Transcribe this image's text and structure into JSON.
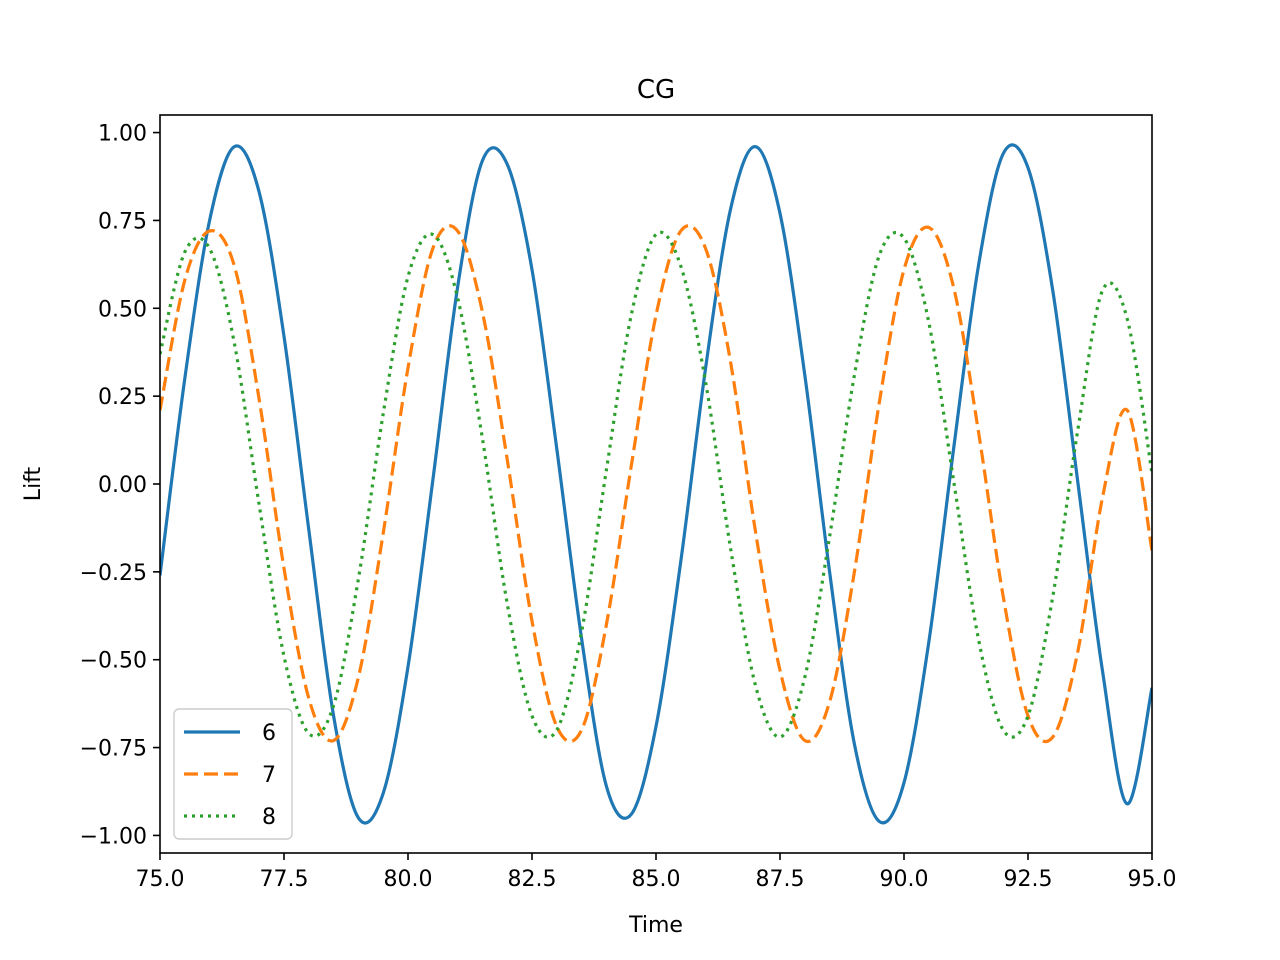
{
  "chart_data": {
    "type": "line",
    "title": "CG",
    "xlabel": "Time",
    "ylabel": "Lift",
    "xlim": [
      75.0,
      95.0
    ],
    "ylim": [
      -1.05,
      1.05
    ],
    "xticks": [
      75.0,
      77.5,
      80.0,
      82.5,
      85.0,
      87.5,
      90.0,
      92.5,
      95.0
    ],
    "xtick_labels": [
      "75.0",
      "77.5",
      "80.0",
      "82.5",
      "85.0",
      "87.5",
      "90.0",
      "92.5",
      "95.0"
    ],
    "yticks": [
      1.0,
      0.75,
      0.5,
      0.25,
      0.0,
      -0.25,
      -0.5,
      -0.75,
      -1.0
    ],
    "ytick_labels": [
      "1.00",
      "0.75",
      "0.50",
      "0.25",
      "0.00",
      "−0.25",
      "−0.50",
      "−0.75",
      "−1.00"
    ],
    "grid": false,
    "legend_position": "lower-left",
    "series": [
      {
        "name": "6",
        "color": "#1f77b4",
        "style": "solid",
        "x": [
          75.0,
          75.5,
          76.0,
          76.5,
          77.0,
          77.5,
          78.0,
          78.5,
          79.0,
          79.5,
          80.0,
          80.5,
          81.0,
          81.5,
          82.0,
          82.5,
          83.0,
          83.5,
          84.0,
          84.5,
          85.0,
          85.5,
          86.0,
          86.5,
          87.0,
          87.5,
          88.0,
          88.5,
          89.0,
          89.5,
          90.0,
          90.5,
          91.0,
          91.5,
          92.0,
          92.5,
          93.0,
          93.5,
          94.0,
          94.5,
          95.0
        ],
        "y": [
          -0.26,
          0.3,
          0.75,
          0.96,
          0.83,
          0.42,
          -0.13,
          -0.66,
          -0.95,
          -0.88,
          -0.52,
          0.01,
          0.56,
          0.92,
          0.91,
          0.61,
          0.1,
          -0.44,
          -0.86,
          -0.94,
          -0.69,
          -0.22,
          0.33,
          0.78,
          0.96,
          0.77,
          0.31,
          -0.25,
          -0.74,
          -0.96,
          -0.85,
          -0.45,
          0.1,
          0.62,
          0.94,
          0.9,
          0.55,
          0.01,
          -0.53,
          -0.91,
          -0.58
        ]
      },
      {
        "name": "7",
        "color": "#ff7f0e",
        "style": "dashed",
        "x": [
          75.0,
          75.5,
          76.0,
          76.5,
          77.0,
          77.5,
          78.0,
          78.5,
          79.0,
          79.5,
          80.0,
          80.5,
          81.0,
          81.5,
          82.0,
          82.5,
          83.0,
          83.5,
          84.0,
          84.5,
          85.0,
          85.5,
          86.0,
          86.5,
          87.0,
          87.5,
          88.0,
          88.5,
          89.0,
          89.5,
          90.0,
          90.5,
          91.0,
          91.5,
          92.0,
          92.5,
          93.0,
          93.5,
          94.0,
          94.5,
          95.0
        ],
        "y": [
          0.21,
          0.58,
          0.72,
          0.62,
          0.24,
          -0.24,
          -0.61,
          -0.73,
          -0.55,
          -0.14,
          0.33,
          0.67,
          0.72,
          0.49,
          0.07,
          -0.39,
          -0.69,
          -0.7,
          -0.4,
          0.05,
          0.48,
          0.72,
          0.67,
          0.35,
          -0.13,
          -0.53,
          -0.73,
          -0.62,
          -0.25,
          0.23,
          0.61,
          0.73,
          0.56,
          0.15,
          -0.32,
          -0.66,
          -0.72,
          -0.48,
          -0.04,
          0.21,
          -0.19
        ]
      },
      {
        "name": "8",
        "color": "#2ca02c",
        "style": "dotted",
        "x": [
          75.0,
          75.5,
          76.0,
          76.5,
          77.0,
          77.5,
          78.0,
          78.5,
          79.0,
          79.5,
          80.0,
          80.5,
          81.0,
          81.5,
          82.0,
          82.5,
          83.0,
          83.5,
          84.0,
          84.5,
          85.0,
          85.5,
          86.0,
          86.5,
          87.0,
          87.5,
          88.0,
          88.5,
          89.0,
          89.5,
          90.0,
          90.5,
          91.0,
          91.5,
          92.0,
          92.5,
          93.0,
          93.5,
          94.0,
          94.5,
          95.0
        ],
        "y": [
          0.37,
          0.66,
          0.67,
          0.4,
          -0.06,
          -0.49,
          -0.71,
          -0.63,
          -0.27,
          0.2,
          0.59,
          0.71,
          0.53,
          0.13,
          -0.34,
          -0.66,
          -0.7,
          -0.42,
          0.04,
          0.48,
          0.71,
          0.62,
          0.29,
          -0.18,
          -0.57,
          -0.72,
          -0.55,
          -0.15,
          0.31,
          0.65,
          0.7,
          0.46,
          0.01,
          -0.44,
          -0.7,
          -0.66,
          -0.32,
          0.15,
          0.55,
          0.47,
          0.03
        ]
      }
    ]
  }
}
